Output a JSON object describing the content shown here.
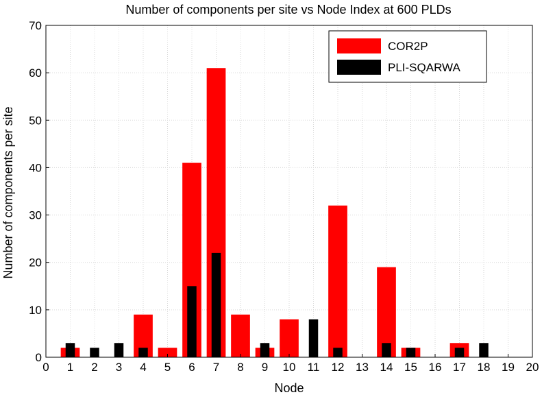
{
  "chart_data": {
    "type": "bar",
    "title": "Number of components per site vs Node Index at 600 PLDs",
    "xlabel": "Node",
    "ylabel": "Number of components per site",
    "xlim": [
      0,
      20
    ],
    "ylim": [
      0,
      70
    ],
    "xticks": [
      0,
      1,
      2,
      3,
      4,
      5,
      6,
      7,
      8,
      9,
      10,
      11,
      12,
      13,
      14,
      15,
      16,
      17,
      18,
      19,
      20
    ],
    "yticks": [
      0,
      10,
      20,
      30,
      40,
      50,
      60,
      70
    ],
    "grid": true,
    "legend_position": "top-right",
    "series": [
      {
        "name": "COR2P",
        "color": "#ff0000",
        "points": [
          {
            "x": 1,
            "y": 2
          },
          {
            "x": 4,
            "y": 9
          },
          {
            "x": 5,
            "y": 2
          },
          {
            "x": 6,
            "y": 41
          },
          {
            "x": 7,
            "y": 61
          },
          {
            "x": 8,
            "y": 9
          },
          {
            "x": 9,
            "y": 2
          },
          {
            "x": 10,
            "y": 8
          },
          {
            "x": 12,
            "y": 32
          },
          {
            "x": 14,
            "y": 19
          },
          {
            "x": 15,
            "y": 2
          },
          {
            "x": 17,
            "y": 3
          }
        ]
      },
      {
        "name": "PLI-SQARWA",
        "color": "#000000",
        "points": [
          {
            "x": 1,
            "y": 3
          },
          {
            "x": 2,
            "y": 2
          },
          {
            "x": 3,
            "y": 3
          },
          {
            "x": 4,
            "y": 2
          },
          {
            "x": 6,
            "y": 15
          },
          {
            "x": 7,
            "y": 22
          },
          {
            "x": 9,
            "y": 3
          },
          {
            "x": 11,
            "y": 8
          },
          {
            "x": 12,
            "y": 2
          },
          {
            "x": 14,
            "y": 3
          },
          {
            "x": 15,
            "y": 2
          },
          {
            "x": 17,
            "y": 2
          },
          {
            "x": 18,
            "y": 3
          }
        ]
      }
    ]
  }
}
